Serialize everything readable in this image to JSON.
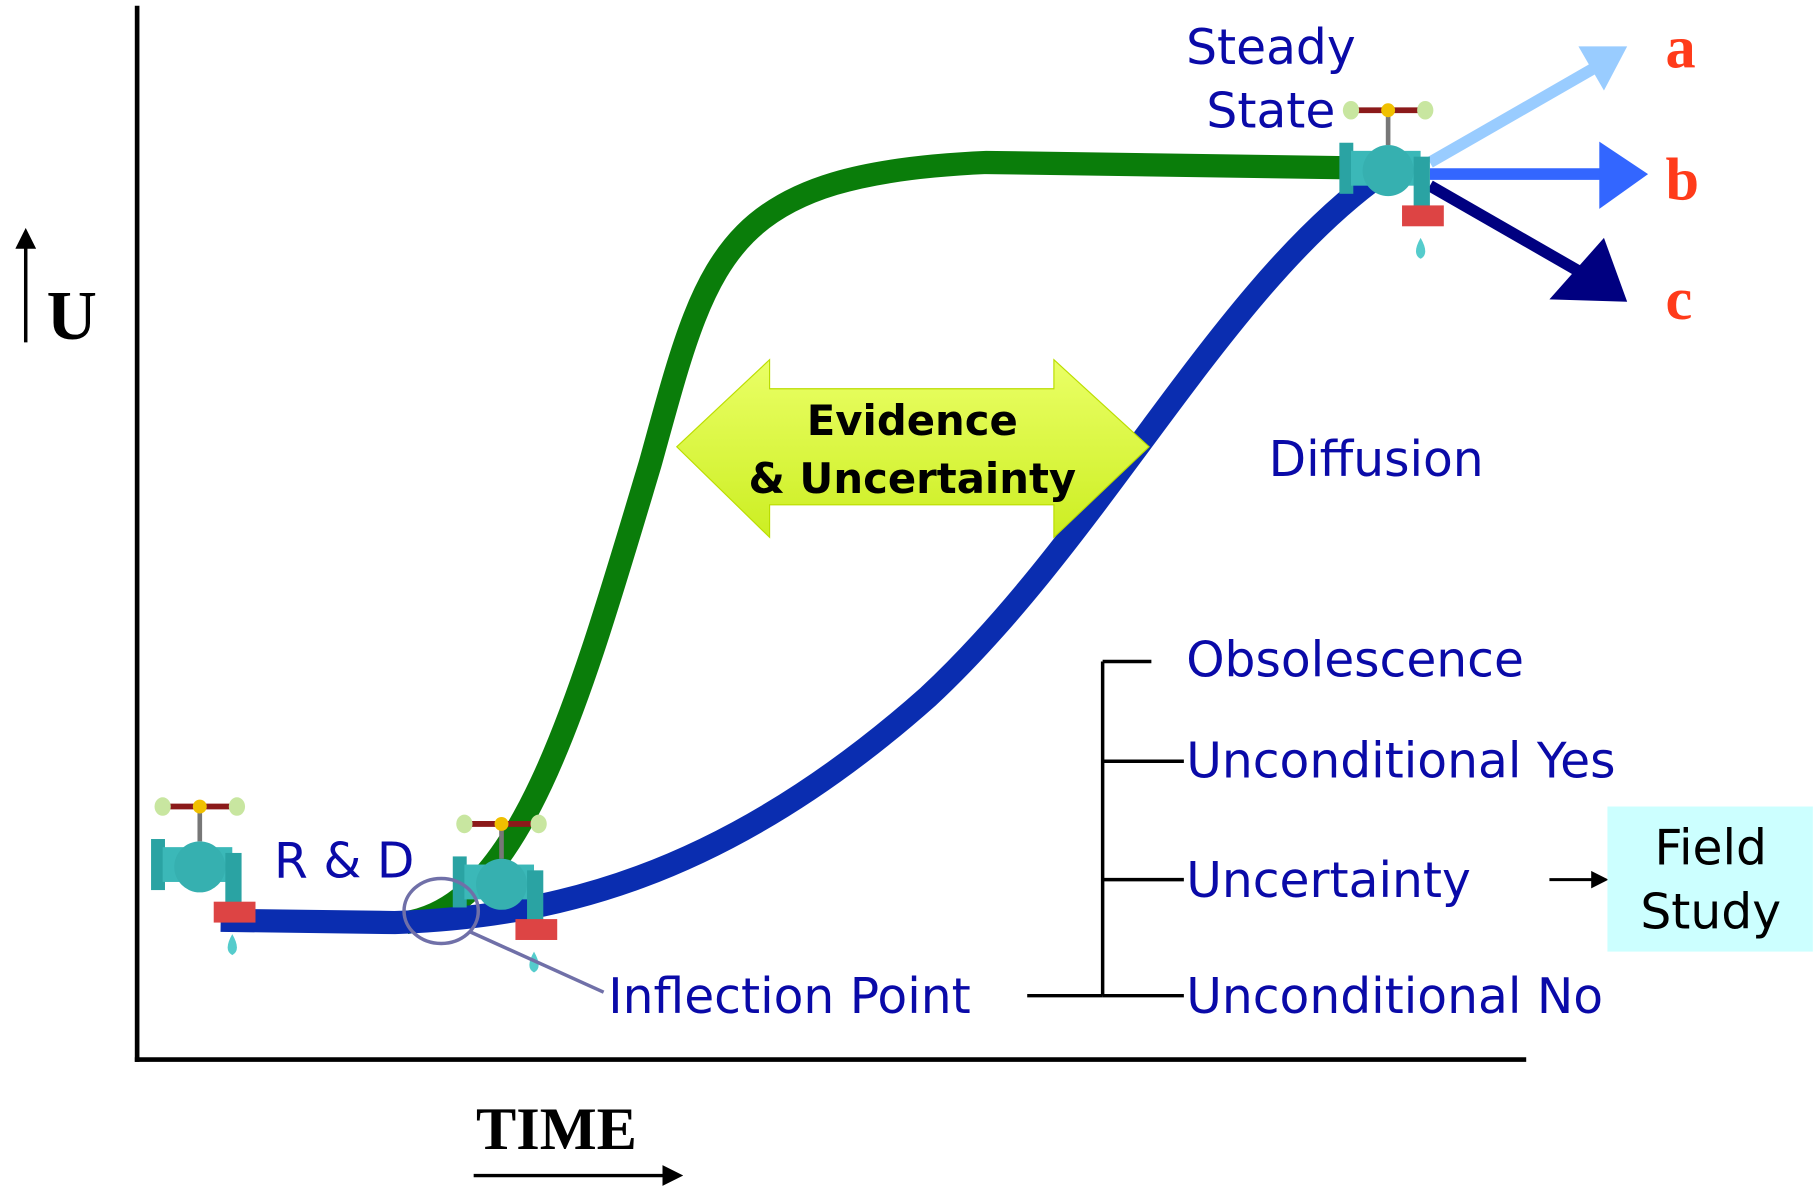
{
  "axes": {
    "y_label": "U",
    "x_label": "TIME"
  },
  "labels": {
    "rd": "R & D",
    "inflection": "Inflection Point",
    "steady": [
      "Steady",
      "State"
    ],
    "diffusion": "Diffusion",
    "evidence": [
      "Evidence",
      "& Uncertainty"
    ]
  },
  "outcomes": [
    "a",
    "b",
    "c"
  ],
  "branches": [
    "Obsolescence",
    "Unconditional Yes",
    "Uncertainty",
    "Unconditional No"
  ],
  "field_study": [
    "Field",
    "Study"
  ]
}
